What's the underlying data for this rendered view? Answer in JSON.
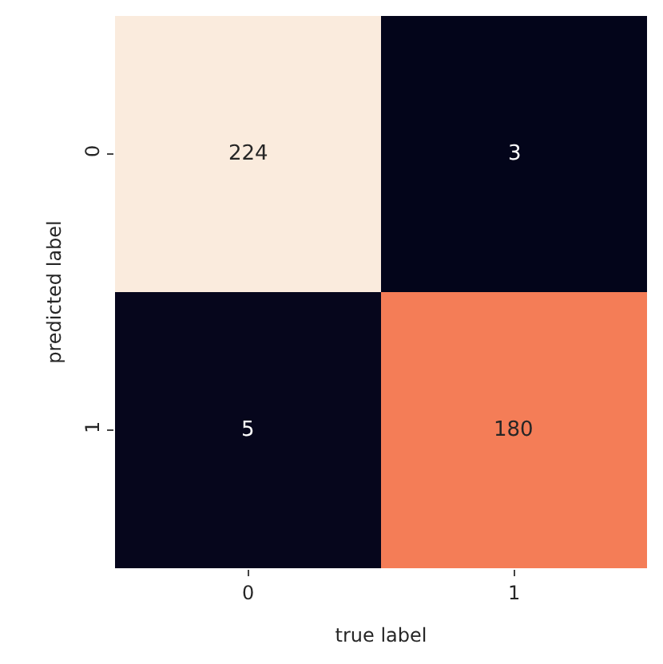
{
  "chart_data": {
    "type": "heatmap",
    "xlabel": "true label",
    "ylabel": "predicted label",
    "categories": [
      "0",
      "1"
    ],
    "y_categories": [
      "0",
      "1"
    ],
    "cells": [
      [
        224,
        3
      ],
      [
        5,
        180
      ]
    ],
    "data_labels": true
  }
}
